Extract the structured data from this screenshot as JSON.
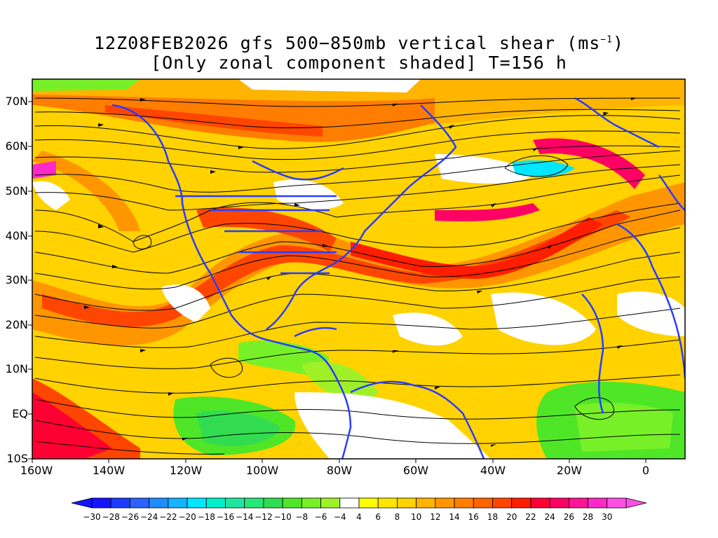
{
  "title": {
    "line1_prefix": "12Z08FEB2026 gfs 500−850mb vertical shear (ms",
    "line1_sup": "−1",
    "line1_suffix": ")",
    "line2": "[Only zonal component shaded] T=156 h"
  },
  "axes": {
    "lat_labels": [
      "70N",
      "60N",
      "50N",
      "40N",
      "30N",
      "20N",
      "10N",
      "EQ",
      "10S"
    ],
    "lon_labels": [
      "160W",
      "140W",
      "120W",
      "100W",
      "80W",
      "60W",
      "40W",
      "20W",
      "0"
    ]
  },
  "colorbar": {
    "labels": [
      "−30",
      "−28",
      "−26",
      "−24",
      "−22",
      "−20",
      "−18",
      "−16",
      "−14",
      "−12",
      "−10",
      "−8",
      "−6",
      "−4",
      "4",
      "6",
      "8",
      "10",
      "12",
      "14",
      "16",
      "18",
      "20",
      "22",
      "24",
      "26",
      "28",
      "30"
    ],
    "colors": [
      "#1414ff",
      "#1e3cff",
      "#2a64ff",
      "#1e8cff",
      "#14b4ff",
      "#00e6ff",
      "#00f0c8",
      "#1ee6a0",
      "#28e678",
      "#32dc50",
      "#50e628",
      "#78f028",
      "#a0f028",
      "#ffffff",
      "#ffff00",
      "#ffe600",
      "#ffd200",
      "#ffb400",
      "#ff9600",
      "#ff7d00",
      "#ff6400",
      "#ff4600",
      "#ff1e00",
      "#ff0032",
      "#ff0064",
      "#ff1496",
      "#ff28c8",
      "#ff50e6"
    ]
  },
  "map_data": {
    "lat_range": [
      -10,
      75
    ],
    "lon_range": [
      -160,
      10
    ],
    "field": "500-850mb zonal vertical shear",
    "units": "ms-1",
    "forecast_hour": 156
  }
}
